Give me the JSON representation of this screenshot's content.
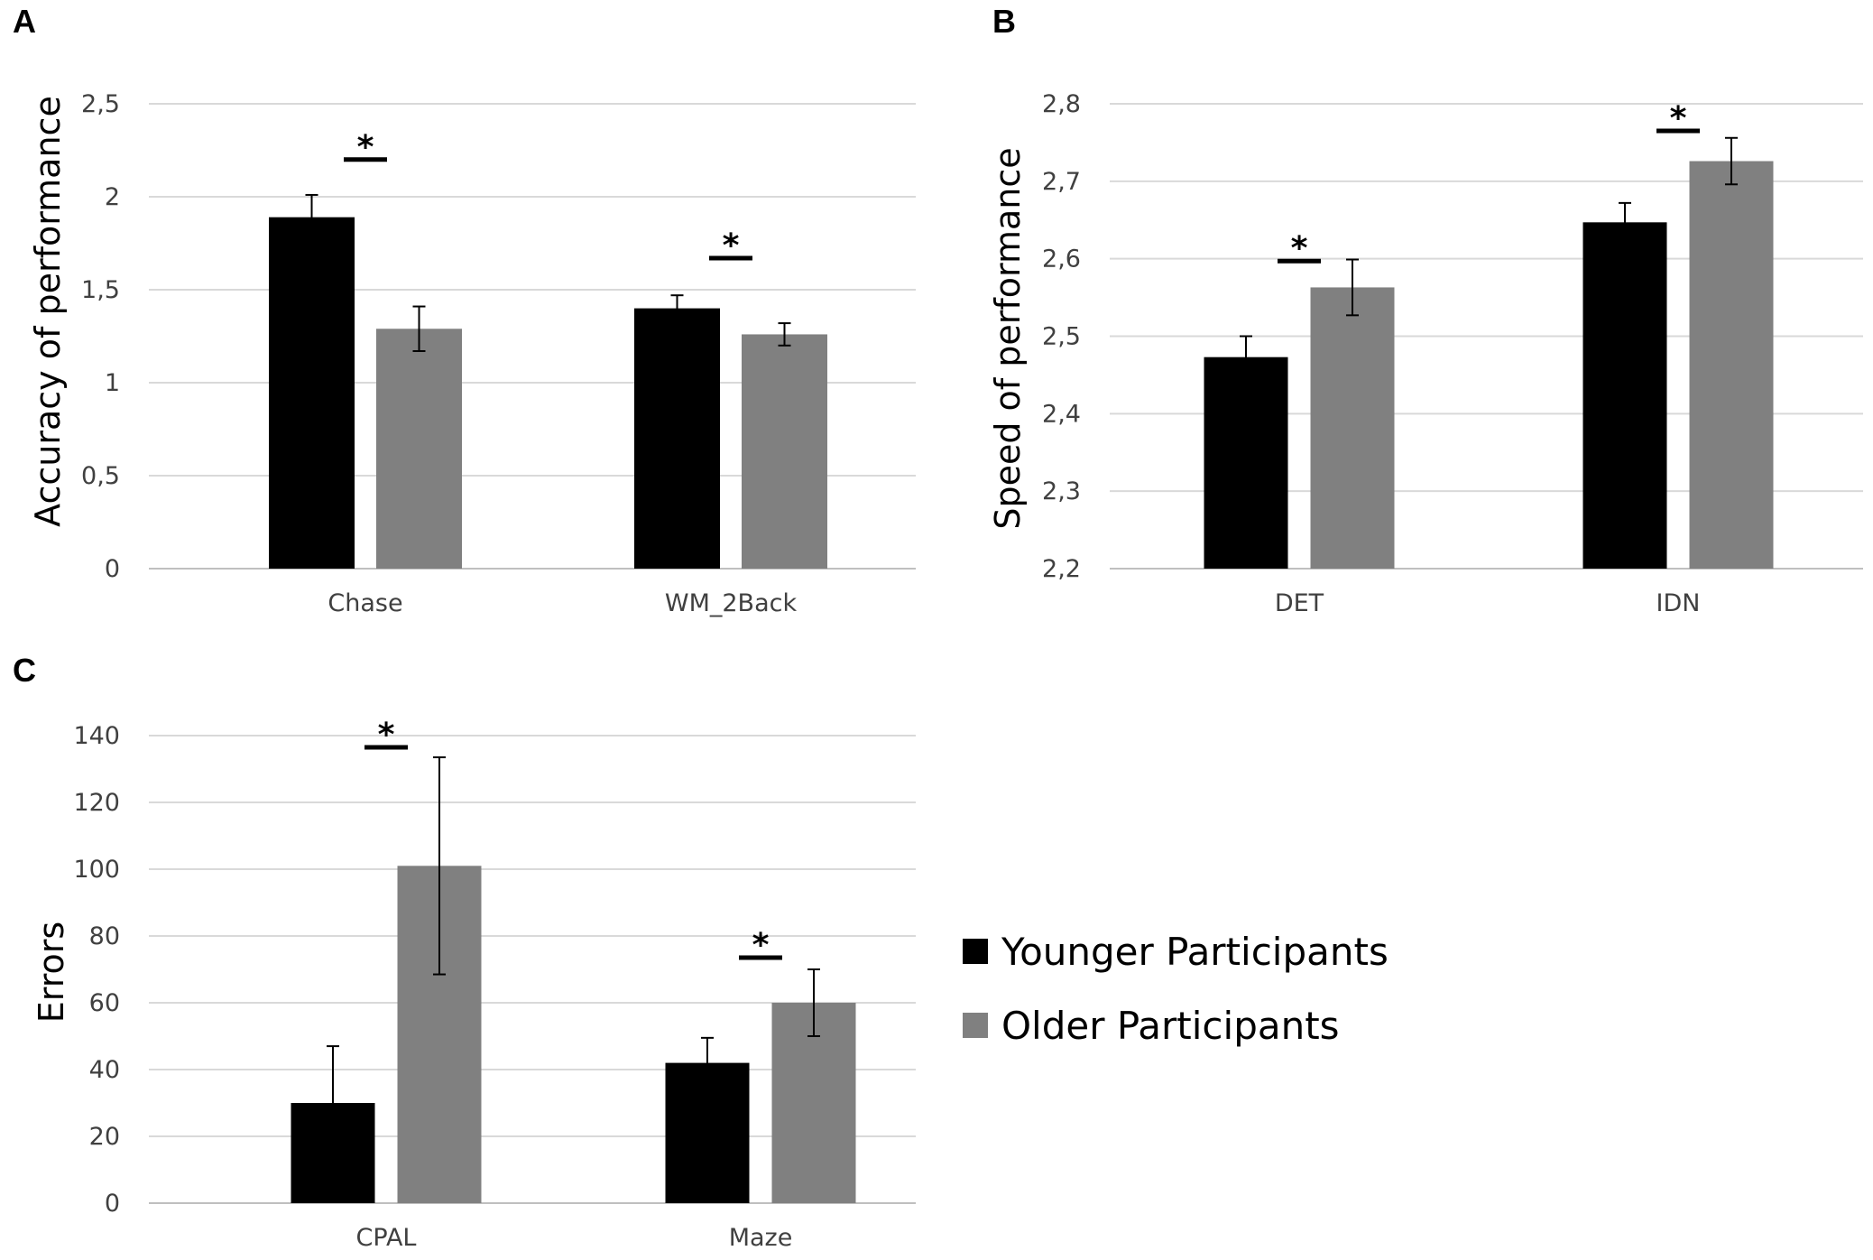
{
  "colors": {
    "younger": "#000000",
    "older": "#808080",
    "grid": "#d9d9d9",
    "axis": "#bfbfbf"
  },
  "legend": {
    "items": [
      {
        "label": "Younger Participants",
        "color": "#000000"
      },
      {
        "label": "Older Participants",
        "color": "#808080"
      }
    ]
  },
  "chart_data": [
    {
      "panel": "A",
      "type": "bar",
      "ylabel": "Accuracy of performance",
      "ylim": [
        0,
        2.5
      ],
      "yticks": [
        "0",
        "0,5",
        "1",
        "1,5",
        "2",
        "2,5"
      ],
      "categories": [
        "Chase",
        "WM_2Back"
      ],
      "series": [
        {
          "name": "Younger Participants",
          "values": [
            1.89,
            1.4
          ],
          "errors": [
            0.12,
            0.07
          ]
        },
        {
          "name": "Older Participants",
          "values": [
            1.29,
            1.26
          ],
          "errors": [
            0.12,
            0.06
          ]
        }
      ],
      "significance": [
        "*",
        "*"
      ]
    },
    {
      "panel": "B",
      "type": "bar",
      "ylabel": "Speed  of performance",
      "ylim": [
        2.2,
        2.8
      ],
      "yticks": [
        "2,2",
        "2,3",
        "2,4",
        "2,5",
        "2,6",
        "2,7",
        "2,8"
      ],
      "categories": [
        "DET",
        "IDN"
      ],
      "series": [
        {
          "name": "Younger Participants",
          "values": [
            2.473,
            2.647
          ],
          "errors": [
            0.027,
            0.025
          ]
        },
        {
          "name": "Older Participants",
          "values": [
            2.563,
            2.726
          ],
          "errors": [
            0.036,
            0.03
          ]
        }
      ],
      "significance": [
        "*",
        "*"
      ]
    },
    {
      "panel": "C",
      "type": "bar",
      "ylabel": "Errors",
      "ylim": [
        0,
        140
      ],
      "yticks": [
        "0",
        "20",
        "40",
        "60",
        "80",
        "100",
        "120",
        "140"
      ],
      "categories": [
        "CPAL",
        "Maze"
      ],
      "series": [
        {
          "name": "Younger Participants",
          "values": [
            30,
            42
          ],
          "errors": [
            17,
            7.5
          ]
        },
        {
          "name": "Older Participants",
          "values": [
            101,
            60
          ],
          "errors": [
            32.5,
            10
          ]
        }
      ],
      "significance": [
        "*",
        "*"
      ]
    }
  ]
}
